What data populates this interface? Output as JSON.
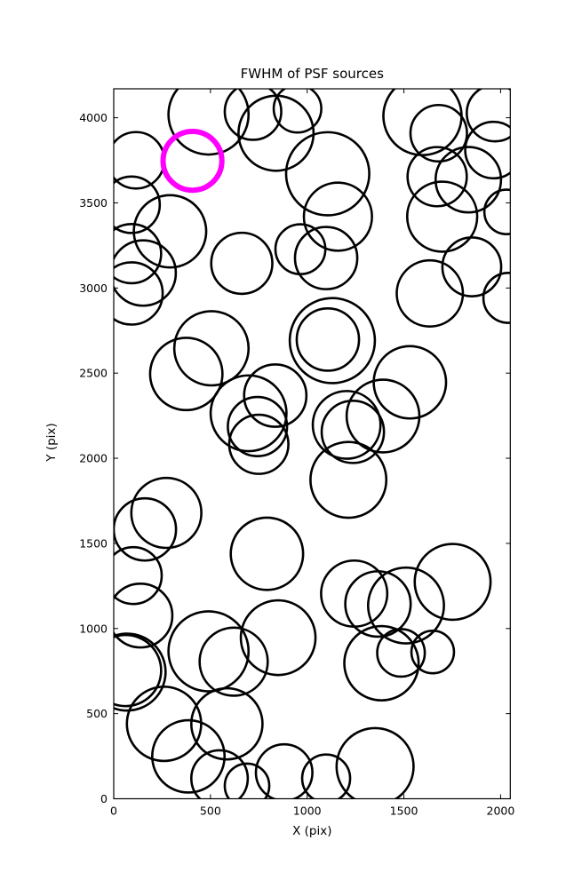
{
  "figure": {
    "title": "FWHM of PSF sources",
    "xlabel": "X (pix)",
    "ylabel": "Y (pix)"
  },
  "chart_data": {
    "type": "scatter",
    "title": "FWHM of PSF sources",
    "xlabel": "X (pix)",
    "ylabel": "Y (pix)",
    "xlim": [
      0,
      2050
    ],
    "ylim": [
      0,
      4170
    ],
    "xticks": [
      0,
      500,
      1000,
      1500,
      2000
    ],
    "yticks": [
      0,
      500,
      1000,
      1500,
      2000,
      2500,
      3000,
      3500,
      4000
    ],
    "grid": false,
    "legend": "none",
    "circle_color": "#000000",
    "highlight_color": "#ff00ff",
    "note": "Each circle marks a PSF source position; circle radius scales with source FWHM (units: pixels). One highlighted source drawn in magenta.",
    "highlighted_source": {
      "x": 407,
      "y": 3747,
      "r": 152
    },
    "sources": [
      [
        490,
        4019,
        207
      ],
      [
        720,
        4036,
        146
      ],
      [
        839,
        3909,
        194
      ],
      [
        950,
        4053,
        123
      ],
      [
        115,
        3750,
        146
      ],
      [
        92,
        3489,
        146
      ],
      [
        291,
        3333,
        187
      ],
      [
        92,
        3202,
        153
      ],
      [
        152,
        3088,
        169
      ],
      [
        92,
        2968,
        161
      ],
      [
        662,
        3145,
        158
      ],
      [
        965,
        3228,
        129
      ],
      [
        1596,
        4010,
        202
      ],
      [
        1680,
        3909,
        146
      ],
      [
        1971,
        4027,
        146
      ],
      [
        1963,
        3810,
        146
      ],
      [
        1672,
        3654,
        153
      ],
      [
        1833,
        3636,
        169
      ],
      [
        2031,
        3447,
        115
      ],
      [
        1698,
        3419,
        181
      ],
      [
        1106,
        3671,
        215
      ],
      [
        1159,
        3419,
        176
      ],
      [
        1098,
        3176,
        161
      ],
      [
        1851,
        3124,
        152
      ],
      [
        1634,
        2968,
        171
      ],
      [
        2040,
        2942,
        129
      ],
      [
        505,
        2646,
        192
      ],
      [
        375,
        2495,
        187
      ],
      [
        1130,
        2691,
        220
      ],
      [
        1107,
        2697,
        161
      ],
      [
        1531,
        2446,
        187
      ],
      [
        1392,
        2248,
        188
      ],
      [
        835,
        2368,
        161
      ],
      [
        697,
        2264,
        196
      ],
      [
        743,
        2186,
        153
      ],
      [
        750,
        2082,
        153
      ],
      [
        1204,
        2196,
        175
      ],
      [
        1236,
        2155,
        161
      ],
      [
        1213,
        1873,
        196
      ],
      [
        272,
        1679,
        181
      ],
      [
        161,
        1582,
        161
      ],
      [
        101,
        1311,
        147
      ],
      [
        138,
        1076,
        165
      ],
      [
        792,
        1439,
        187
      ],
      [
        850,
        946,
        193
      ],
      [
        1243,
        1205,
        171
      ],
      [
        1366,
        1144,
        169
      ],
      [
        1511,
        1135,
        196
      ],
      [
        1752,
        1274,
        196
      ],
      [
        1384,
        796,
        192
      ],
      [
        1485,
        857,
        123
      ],
      [
        1649,
        862,
        110
      ],
      [
        69,
        744,
        199
      ],
      [
        61,
        753,
        184
      ],
      [
        490,
        866,
        207
      ],
      [
        620,
        805,
        176
      ],
      [
        260,
        440,
        192
      ],
      [
        585,
        440,
        184
      ],
      [
        386,
        249,
        187
      ],
      [
        547,
        119,
        146
      ],
      [
        689,
        76,
        115
      ],
      [
        881,
        154,
        146
      ],
      [
        1351,
        189,
        199
      ],
      [
        1098,
        119,
        124
      ]
    ]
  }
}
